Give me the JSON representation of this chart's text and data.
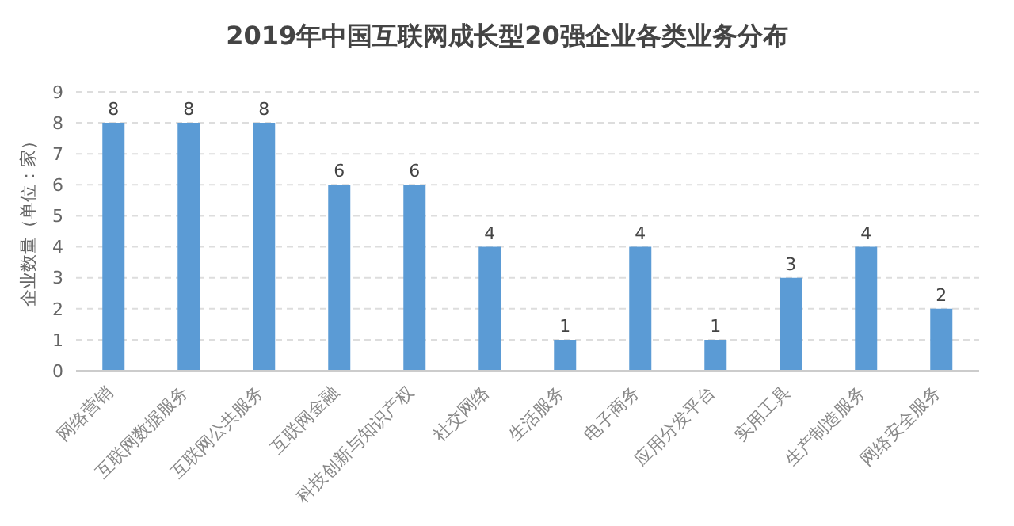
{
  "chart_data": {
    "type": "bar",
    "title": "2019年中国互联网成长型20强企业各类业务分布",
    "ylabel": "企业数量（单位：家）",
    "categories": [
      "网络营销",
      "互联网数据服务",
      "互联网公共服务",
      "互联网金融",
      "科技创新与知识产权",
      "社交网络",
      "生活服务",
      "电子商务",
      "应用分发平台",
      "实用工具",
      "生产制造服务",
      "网络安全服务"
    ],
    "values": [
      8,
      8,
      8,
      6,
      6,
      4,
      1,
      4,
      1,
      3,
      4,
      2
    ],
    "color": "#5b9bd5",
    "ylim": [
      0,
      9
    ],
    "yticks": [
      0,
      1,
      2,
      3,
      4,
      5,
      6,
      7,
      8,
      9
    ],
    "grid": "y",
    "data_labels": true
  }
}
